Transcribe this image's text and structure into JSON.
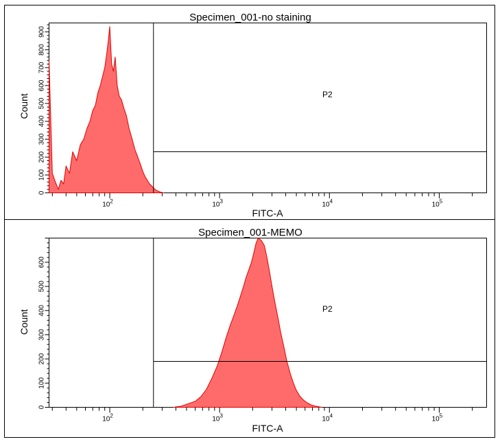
{
  "chart_data": [
    {
      "type": "area",
      "panel": "top",
      "title": "Specimen_001-no staining",
      "xlabel": "FITC-A",
      "ylabel": "Count",
      "xscale": "log",
      "xlim": [
        28,
        270000
      ],
      "ylim": [
        0,
        950
      ],
      "y_ticks": [
        0,
        100,
        200,
        300,
        400,
        500,
        600,
        700,
        800,
        900
      ],
      "x_ticks": [
        {
          "value": 100,
          "base": "10",
          "exp": "2"
        },
        {
          "value": 1000,
          "base": "10",
          "exp": "3"
        },
        {
          "value": 10000,
          "base": "10",
          "exp": "4"
        },
        {
          "value": 100000,
          "base": "10",
          "exp": "5"
        }
      ],
      "gate": {
        "label": "P2",
        "x_start": 250,
        "level": 230
      },
      "fill_color": "#ff6b6b",
      "line_color": "#e00000",
      "series": [
        {
          "name": "Count",
          "x": [
            28,
            30,
            32,
            34,
            36,
            38,
            40,
            43,
            46,
            50,
            54,
            58,
            62,
            66,
            70,
            74,
            78,
            82,
            86,
            90,
            94,
            97,
            100,
            104,
            108,
            112,
            117,
            122,
            128,
            135,
            142,
            150,
            160,
            170,
            180,
            190,
            200,
            210,
            220,
            230,
            240,
            250,
            260,
            275,
            290,
            310
          ],
          "values": [
            740,
            110,
            60,
            20,
            70,
            50,
            150,
            110,
            230,
            180,
            270,
            300,
            360,
            400,
            460,
            490,
            560,
            600,
            650,
            700,
            780,
            850,
            930,
            720,
            680,
            760,
            600,
            540,
            520,
            470,
            430,
            360,
            300,
            240,
            200,
            160,
            120,
            90,
            70,
            50,
            40,
            28,
            18,
            10,
            4,
            0
          ]
        }
      ]
    },
    {
      "type": "area",
      "panel": "bottom",
      "title": "Specimen_001-MEMO",
      "xlabel": "FITC-A",
      "ylabel": "Count",
      "xscale": "log",
      "xlim": [
        28,
        270000
      ],
      "ylim": [
        0,
        700
      ],
      "y_ticks": [
        0,
        100,
        200,
        300,
        400,
        500,
        600
      ],
      "x_ticks": [
        {
          "value": 100,
          "base": "10",
          "exp": "2"
        },
        {
          "value": 1000,
          "base": "10",
          "exp": "3"
        },
        {
          "value": 10000,
          "base": "10",
          "exp": "4"
        },
        {
          "value": 100000,
          "base": "10",
          "exp": "5"
        }
      ],
      "gate": {
        "label": "P2",
        "x_start": 250,
        "level": 190
      },
      "fill_color": "#ff6b6b",
      "line_color": "#e00000",
      "series": [
        {
          "name": "Count",
          "x": [
            380,
            450,
            520,
            600,
            680,
            760,
            850,
            950,
            1050,
            1150,
            1250,
            1350,
            1450,
            1550,
            1650,
            1750,
            1850,
            1950,
            2050,
            2150,
            2250,
            2400,
            2550,
            2700,
            2850,
            3000,
            3200,
            3400,
            3600,
            3850,
            4100,
            4400,
            4700,
            5000,
            5400,
            5800,
            6300,
            6800,
            7400,
            8000,
            8500
          ],
          "values": [
            0,
            5,
            15,
            25,
            45,
            75,
            120,
            170,
            230,
            290,
            340,
            380,
            420,
            460,
            500,
            540,
            570,
            600,
            640,
            680,
            700,
            690,
            670,
            620,
            560,
            500,
            430,
            370,
            310,
            250,
            190,
            140,
            100,
            70,
            45,
            30,
            18,
            10,
            5,
            2,
            0
          ]
        }
      ]
    }
  ]
}
